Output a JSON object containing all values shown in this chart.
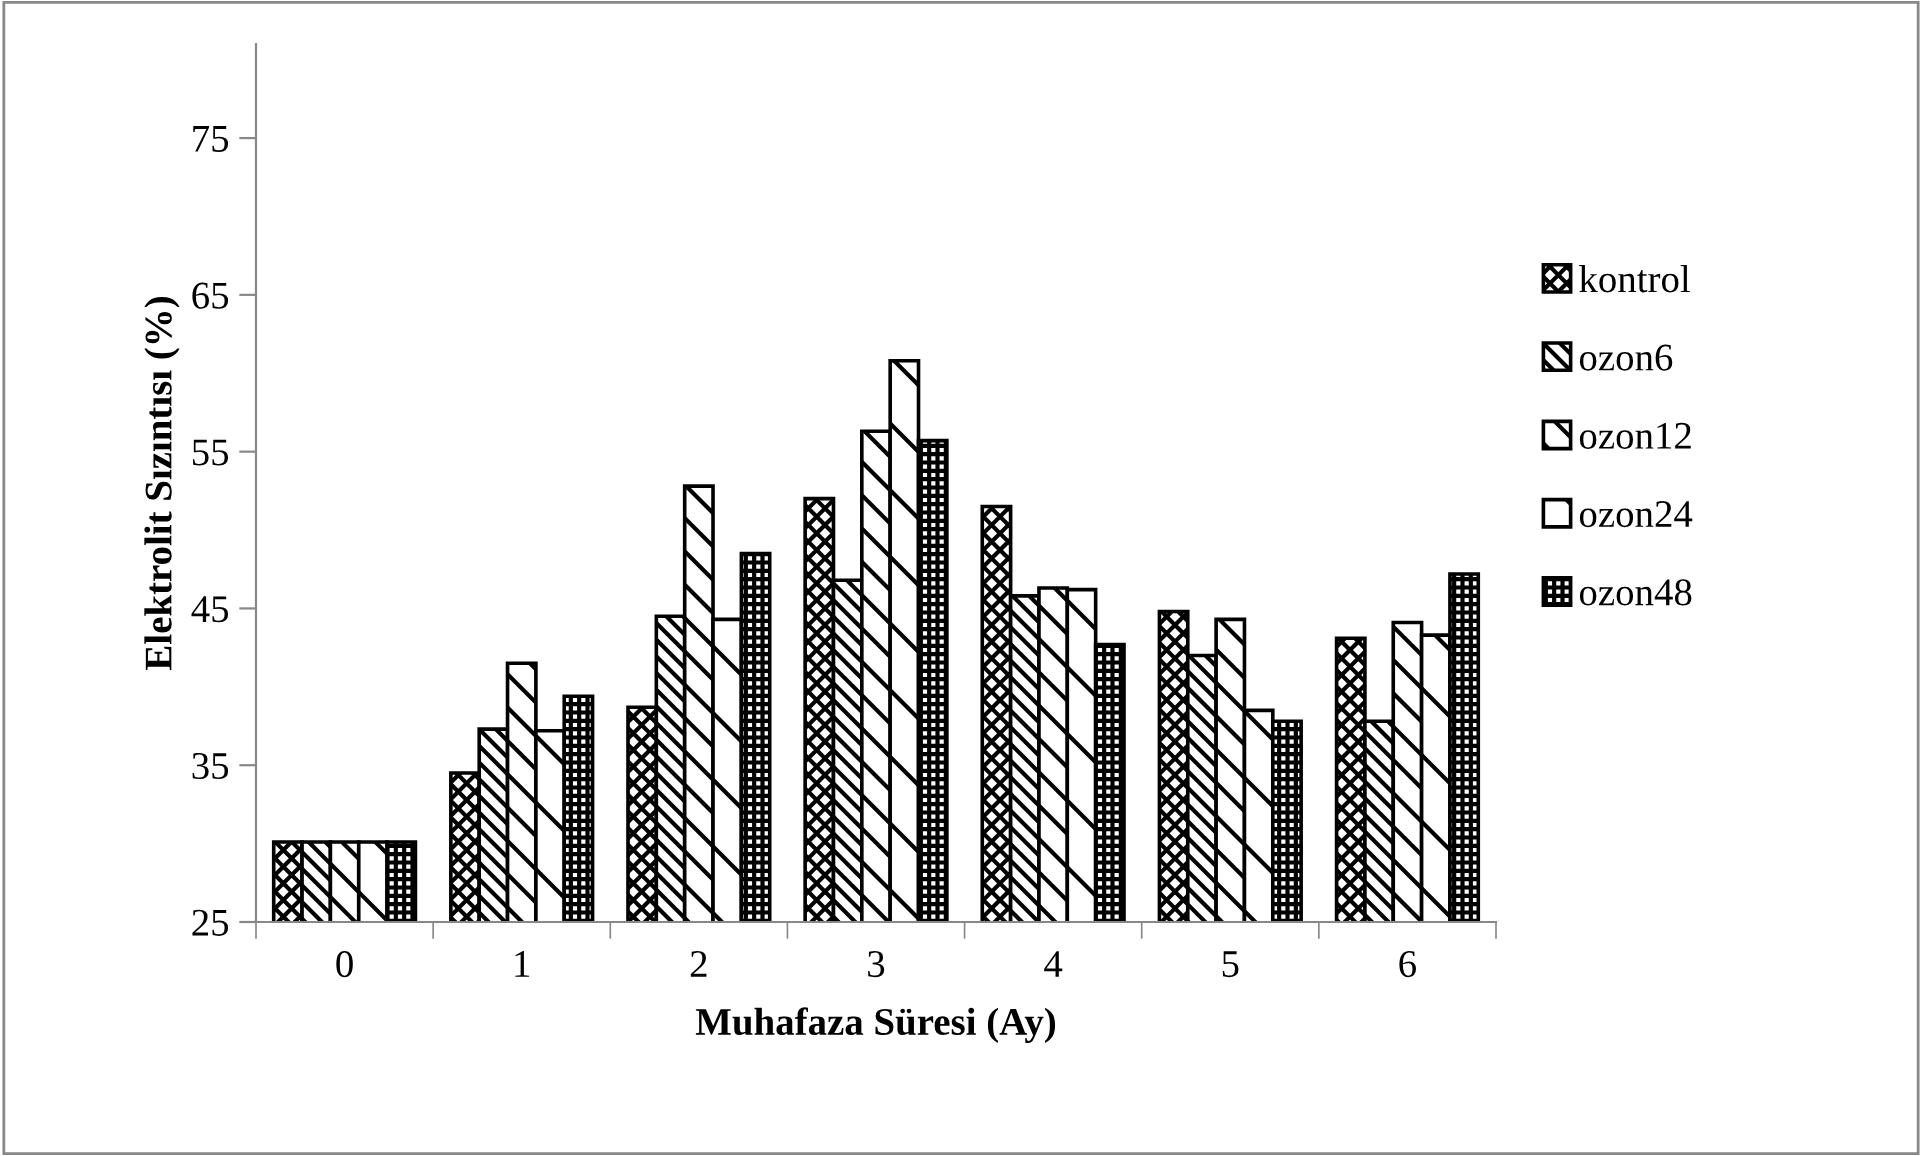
{
  "chart_data": {
    "type": "bar",
    "xlabel": "Muhafaza Süresi (Ay)",
    "ylabel": "Elektrolit Sızıntısı (%)",
    "categories": [
      "0",
      "1",
      "2",
      "3",
      "4",
      "5",
      "6"
    ],
    "series": [
      {
        "name": "kontrol",
        "color": "#000000",
        "values": [
          30.1,
          34.5,
          38.7,
          52.0,
          51.5,
          44.8,
          43.1
        ]
      },
      {
        "name": "ozon6",
        "color": "#000000",
        "values": [
          30.1,
          37.3,
          44.5,
          46.8,
          45.8,
          42.0,
          37.8
        ]
      },
      {
        "name": "ozon12",
        "color": "#000000",
        "values": [
          30.1,
          41.5,
          52.8,
          56.3,
          46.3,
          44.3,
          44.1
        ]
      },
      {
        "name": "ozon24",
        "color": "#000000",
        "values": [
          30.1,
          37.2,
          44.3,
          60.8,
          46.2,
          38.5,
          43.3
        ]
      },
      {
        "name": "ozon48",
        "color": "#000000",
        "values": [
          30.1,
          39.4,
          48.5,
          55.7,
          42.7,
          37.8,
          47.2
        ]
      }
    ],
    "ylim": [
      25,
      81
    ],
    "yticks": [
      25,
      35,
      45,
      55,
      65,
      75
    ],
    "grid": false,
    "legend": "right"
  }
}
